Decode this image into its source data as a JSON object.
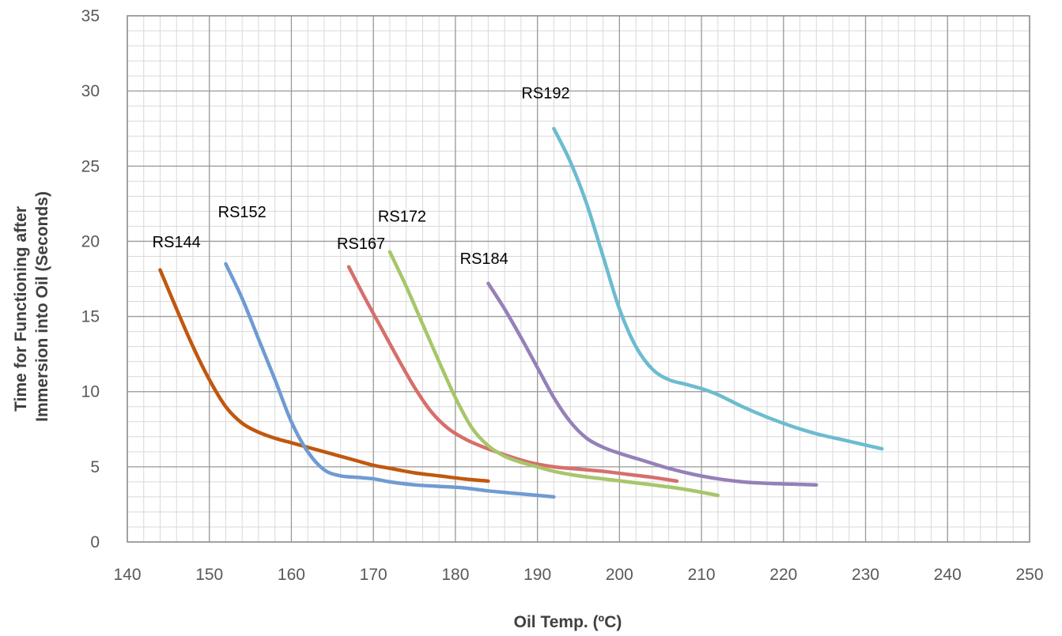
{
  "chart_data": {
    "type": "line",
    "title": "",
    "xlabel": "Oil Temp. (ºC)",
    "ylabel_lines": [
      "Time for Functioning after",
      "Immersion into Oil (Seconds)"
    ],
    "xlim": [
      140,
      250
    ],
    "ylim": [
      0,
      35
    ],
    "x_ticks": [
      140,
      150,
      160,
      170,
      180,
      190,
      200,
      210,
      220,
      230,
      240,
      250
    ],
    "y_ticks": [
      0,
      5,
      10,
      15,
      20,
      25,
      30,
      35
    ],
    "grid": "major and minor",
    "legend": "none (inline series labels)",
    "series": [
      {
        "name": "RS144",
        "color": "#c0580f",
        "label_at": [
          146,
          19.6
        ],
        "points": [
          [
            144,
            18.1
          ],
          [
            146,
            15.5
          ],
          [
            148,
            13
          ],
          [
            150,
            10.8
          ],
          [
            152,
            9
          ],
          [
            154,
            7.9
          ],
          [
            156,
            7.3
          ],
          [
            158,
            6.9
          ],
          [
            160,
            6.6
          ],
          [
            162,
            6.3
          ],
          [
            164,
            6
          ],
          [
            166,
            5.7
          ],
          [
            168,
            5.4
          ],
          [
            170,
            5.1
          ],
          [
            172,
            4.9
          ],
          [
            175,
            4.6
          ],
          [
            178,
            4.4
          ],
          [
            181,
            4.2
          ],
          [
            184,
            4.05
          ]
        ]
      },
      {
        "name": "RS152",
        "color": "#6f9bd2",
        "label_at": [
          154,
          21.6
        ],
        "points": [
          [
            152,
            18.5
          ],
          [
            154,
            16.2
          ],
          [
            156,
            13.5
          ],
          [
            158,
            10.8
          ],
          [
            160,
            8
          ],
          [
            162,
            6
          ],
          [
            164,
            4.8
          ],
          [
            166,
            4.4
          ],
          [
            168,
            4.3
          ],
          [
            170,
            4.2
          ],
          [
            172,
            4
          ],
          [
            175,
            3.8
          ],
          [
            178,
            3.7
          ],
          [
            181,
            3.6
          ],
          [
            184,
            3.4
          ],
          [
            188,
            3.2
          ],
          [
            192,
            3
          ]
        ]
      },
      {
        "name": "RS167",
        "color": "#d66f6b",
        "label_at": [
          168.5,
          19.5
        ],
        "points": [
          [
            167,
            18.3
          ],
          [
            169,
            16.2
          ],
          [
            171,
            14.2
          ],
          [
            173,
            12.2
          ],
          [
            175,
            10.3
          ],
          [
            177,
            8.7
          ],
          [
            179,
            7.6
          ],
          [
            181,
            6.9
          ],
          [
            183,
            6.4
          ],
          [
            186,
            5.8
          ],
          [
            189,
            5.3
          ],
          [
            192,
            5
          ],
          [
            195,
            4.85
          ],
          [
            198,
            4.7
          ],
          [
            201,
            4.5
          ],
          [
            204,
            4.3
          ],
          [
            207,
            4.05
          ]
        ]
      },
      {
        "name": "RS172",
        "color": "#a7c66a",
        "label_at": [
          173.5,
          21.3
        ],
        "points": [
          [
            172,
            19.3
          ],
          [
            174,
            17
          ],
          [
            176,
            14.5
          ],
          [
            178,
            12
          ],
          [
            180,
            9.6
          ],
          [
            182,
            7.6
          ],
          [
            184,
            6.4
          ],
          [
            186,
            5.7
          ],
          [
            188,
            5.3
          ],
          [
            190,
            5
          ],
          [
            192,
            4.7
          ],
          [
            195,
            4.4
          ],
          [
            198,
            4.2
          ],
          [
            201,
            4
          ],
          [
            204,
            3.8
          ],
          [
            208,
            3.5
          ],
          [
            212,
            3.1
          ]
        ]
      },
      {
        "name": "RS184",
        "color": "#9580b8",
        "label_at": [
          183.5,
          18.5
        ],
        "points": [
          [
            184,
            17.2
          ],
          [
            186,
            15.5
          ],
          [
            188,
            13.6
          ],
          [
            190,
            11.6
          ],
          [
            192,
            9.6
          ],
          [
            194,
            8
          ],
          [
            196,
            6.9
          ],
          [
            198,
            6.3
          ],
          [
            200,
            5.9
          ],
          [
            203,
            5.4
          ],
          [
            206,
            4.9
          ],
          [
            209,
            4.5
          ],
          [
            212,
            4.2
          ],
          [
            215,
            4
          ],
          [
            218,
            3.9
          ],
          [
            221,
            3.85
          ],
          [
            224,
            3.8
          ]
        ]
      },
      {
        "name": "RS192",
        "color": "#6cbccf",
        "label_at": [
          191,
          29.5
        ],
        "points": [
          [
            192,
            27.5
          ],
          [
            194,
            25.3
          ],
          [
            196,
            22.5
          ],
          [
            198,
            19
          ],
          [
            200,
            15.5
          ],
          [
            202,
            13
          ],
          [
            204,
            11.5
          ],
          [
            206,
            10.8
          ],
          [
            208,
            10.5
          ],
          [
            210,
            10.2
          ],
          [
            212,
            9.8
          ],
          [
            215,
            9
          ],
          [
            218,
            8.3
          ],
          [
            221,
            7.7
          ],
          [
            224,
            7.2
          ],
          [
            228,
            6.7
          ],
          [
            232,
            6.2
          ]
        ]
      }
    ]
  }
}
